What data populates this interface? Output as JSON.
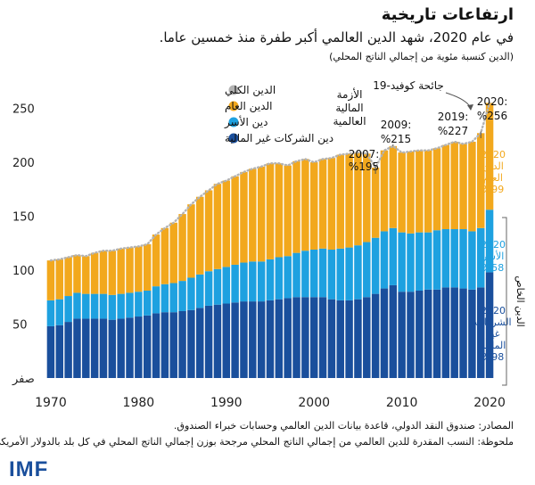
{
  "header": {
    "title": "ارتفاعات تاريخية",
    "subtitle": "في عام 2020، شهد الدين العالمي أكبر طفرة منذ خمسين عاما.",
    "unit_note": "(الدين كنسبة مئوية من إجمالي الناتج المحلي)"
  },
  "footer": {
    "sources": "المصادر: صندوق النقد الدولي، قاعدة بيانات الدين العالمي وحسابات خبراء الصندوق.",
    "note": "ملحوظة: النسب المقدرة للدين العالمي من إجمالي الناتج المحلي مرجحة بوزن إجمالي الناتج المحلي في كل بلد بالدولار الأمريكي.",
    "logo": "IMF"
  },
  "colors": {
    "total": "#b3b3b3",
    "public": "#f2a81d",
    "household": "#1ea1e0",
    "corporate": "#1a4f9c"
  },
  "chart_data": {
    "type": "bar",
    "stacked": true,
    "x": [
      1970,
      1971,
      1972,
      1973,
      1974,
      1975,
      1976,
      1977,
      1978,
      1979,
      1980,
      1981,
      1982,
      1983,
      1984,
      1985,
      1986,
      1987,
      1988,
      1989,
      1990,
      1991,
      1992,
      1993,
      1994,
      1995,
      1996,
      1997,
      1998,
      1999,
      2000,
      2001,
      2002,
      2003,
      2004,
      2005,
      2006,
      2007,
      2008,
      2009,
      2010,
      2011,
      2012,
      2013,
      2014,
      2015,
      2016,
      2017,
      2018,
      2019,
      2020
    ],
    "series": [
      {
        "name": "دين الشركات غير المالية",
        "color_key": "corporate",
        "values": [
          48,
          49,
          52,
          55,
          55,
          55,
          55,
          54,
          55,
          56,
          57,
          58,
          60,
          61,
          61,
          62,
          63,
          65,
          67,
          68,
          69,
          70,
          71,
          71,
          71,
          72,
          73,
          74,
          75,
          75,
          75,
          75,
          73,
          72,
          72,
          73,
          75,
          78,
          83,
          86,
          80,
          80,
          81,
          82,
          82,
          84,
          84,
          83,
          82,
          84,
          98
        ]
      },
      {
        "name": "دين الأسر",
        "color_key": "household",
        "values": [
          24,
          24,
          24,
          24,
          23,
          23,
          23,
          23,
          23,
          23,
          23,
          23,
          25,
          26,
          27,
          28,
          30,
          31,
          32,
          33,
          34,
          35,
          36,
          37,
          37,
          38,
          39,
          39,
          41,
          43,
          44,
          45,
          46,
          48,
          49,
          50,
          51,
          52,
          53,
          53,
          55,
          54,
          54,
          53,
          55,
          54,
          54,
          55,
          54,
          55,
          58
        ]
      },
      {
        "name": "الدين العام",
        "color_key": "public",
        "values": [
          37,
          37,
          36,
          35,
          35,
          38,
          40,
          41,
          42,
          42,
          42,
          43,
          48,
          52,
          56,
          62,
          68,
          72,
          75,
          79,
          80,
          82,
          84,
          86,
          88,
          89,
          87,
          84,
          85,
          85,
          81,
          83,
          85,
          87,
          87,
          86,
          82,
          65,
          75,
          76,
          74,
          76,
          76,
          76,
          76,
          78,
          81,
          79,
          83,
          88,
          99
        ]
      }
    ],
    "legend": [
      "الدين الكلي",
      "الدين العام",
      "دين الأسر",
      "دين الشركات غير المالية"
    ],
    "y_ticks": [
      "250",
      "200",
      "150",
      "100",
      "50",
      "صفر"
    ],
    "x_ticks": [
      "1970",
      "1980",
      "1990",
      "2000",
      "2010",
      "2020"
    ],
    "ylim": [
      0,
      275
    ],
    "xlim": [
      1969.5,
      2020.5
    ],
    "annotations": [
      {
        "label": "2007:",
        "value": "%195"
      },
      {
        "label": "2009:",
        "value": "%215"
      },
      {
        "label": "2019:",
        "value": "%227"
      },
      {
        "label": "2020:",
        "value": "%256"
      }
    ],
    "crisis_label": [
      "الأزمة",
      "المالية",
      "العالمية"
    ],
    "covid_label": "جائحة كوفيد-19",
    "breakdown_2020": [
      {
        "lines": [
          "2020",
          "الدين",
          "العام",
          "%99"
        ],
        "color_key": "public"
      },
      {
        "lines": [
          "2020",
          "الأسر",
          "%58"
        ],
        "color_key": "household"
      },
      {
        "lines": [
          "2020",
          "الشركات",
          "غير",
          "المالية",
          "%98"
        ],
        "color_key": "corporate"
      }
    ],
    "private_label": "الدين الخاص"
  }
}
